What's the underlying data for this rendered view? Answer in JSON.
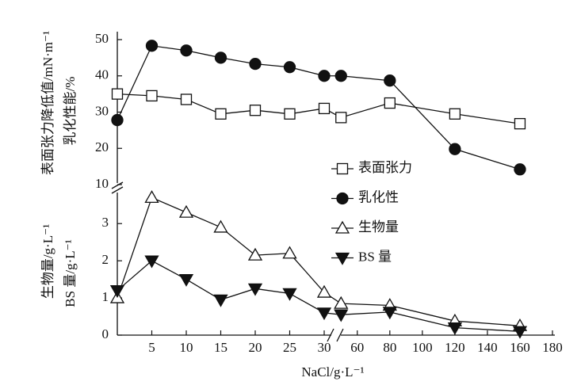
{
  "chart_data": {
    "type": "line",
    "xlabel": "NaCl/g·L⁻¹",
    "ylabel": [
      "生物量/g·L⁻¹",
      "BS 量/g·L⁻¹"
    ],
    "y2label": [
      "表面张力降低值/mN·m⁻¹",
      "乳化性能/%"
    ],
    "x": [
      0,
      5,
      10,
      15,
      20,
      25,
      30,
      50,
      80,
      120,
      160
    ],
    "x_segments": [
      {
        "xlim": [
          0,
          30
        ],
        "xticks": [
          5,
          10,
          15,
          20,
          25,
          30
        ]
      },
      {
        "xlim": [
          45,
          180
        ],
        "xticks": [
          60,
          80,
          100,
          120,
          140,
          160,
          180
        ]
      }
    ],
    "ylim": [
      0,
      3.9
    ],
    "yticks": [
      0,
      1,
      2,
      3
    ],
    "y2lim": [
      10,
      50
    ],
    "y2ticks": [
      10,
      20,
      30,
      40,
      50
    ],
    "series": [
      {
        "name": "表面张力",
        "color": "#111111",
        "marker": "square",
        "filled": false,
        "axis": "y2",
        "values": [
          35,
          34.5,
          33.5,
          29.5,
          30.5,
          29.5,
          31,
          28.5,
          32.5,
          29.5,
          26.8
        ]
      },
      {
        "name": "乳化性",
        "color": "#111111",
        "marker": "circle",
        "filled": true,
        "axis": "y2",
        "values": [
          27.8,
          48.3,
          47,
          45,
          43.3,
          42.4,
          40,
          40,
          38.7,
          19.8,
          14.2
        ]
      },
      {
        "name": "生物量",
        "color": "#111111",
        "marker": "triangle",
        "filled": false,
        "axis": "y",
        "values": [
          1.0,
          3.7,
          3.3,
          2.9,
          2.15,
          2.2,
          1.15,
          0.85,
          0.8,
          0.38,
          0.25
        ]
      },
      {
        "name": "BS 量",
        "color": "#111111",
        "marker": "triangle-down",
        "filled": true,
        "axis": "y",
        "values": [
          1.2,
          2.0,
          1.5,
          0.95,
          1.25,
          1.12,
          0.6,
          0.55,
          0.62,
          0.2,
          0.1
        ]
      }
    ]
  }
}
